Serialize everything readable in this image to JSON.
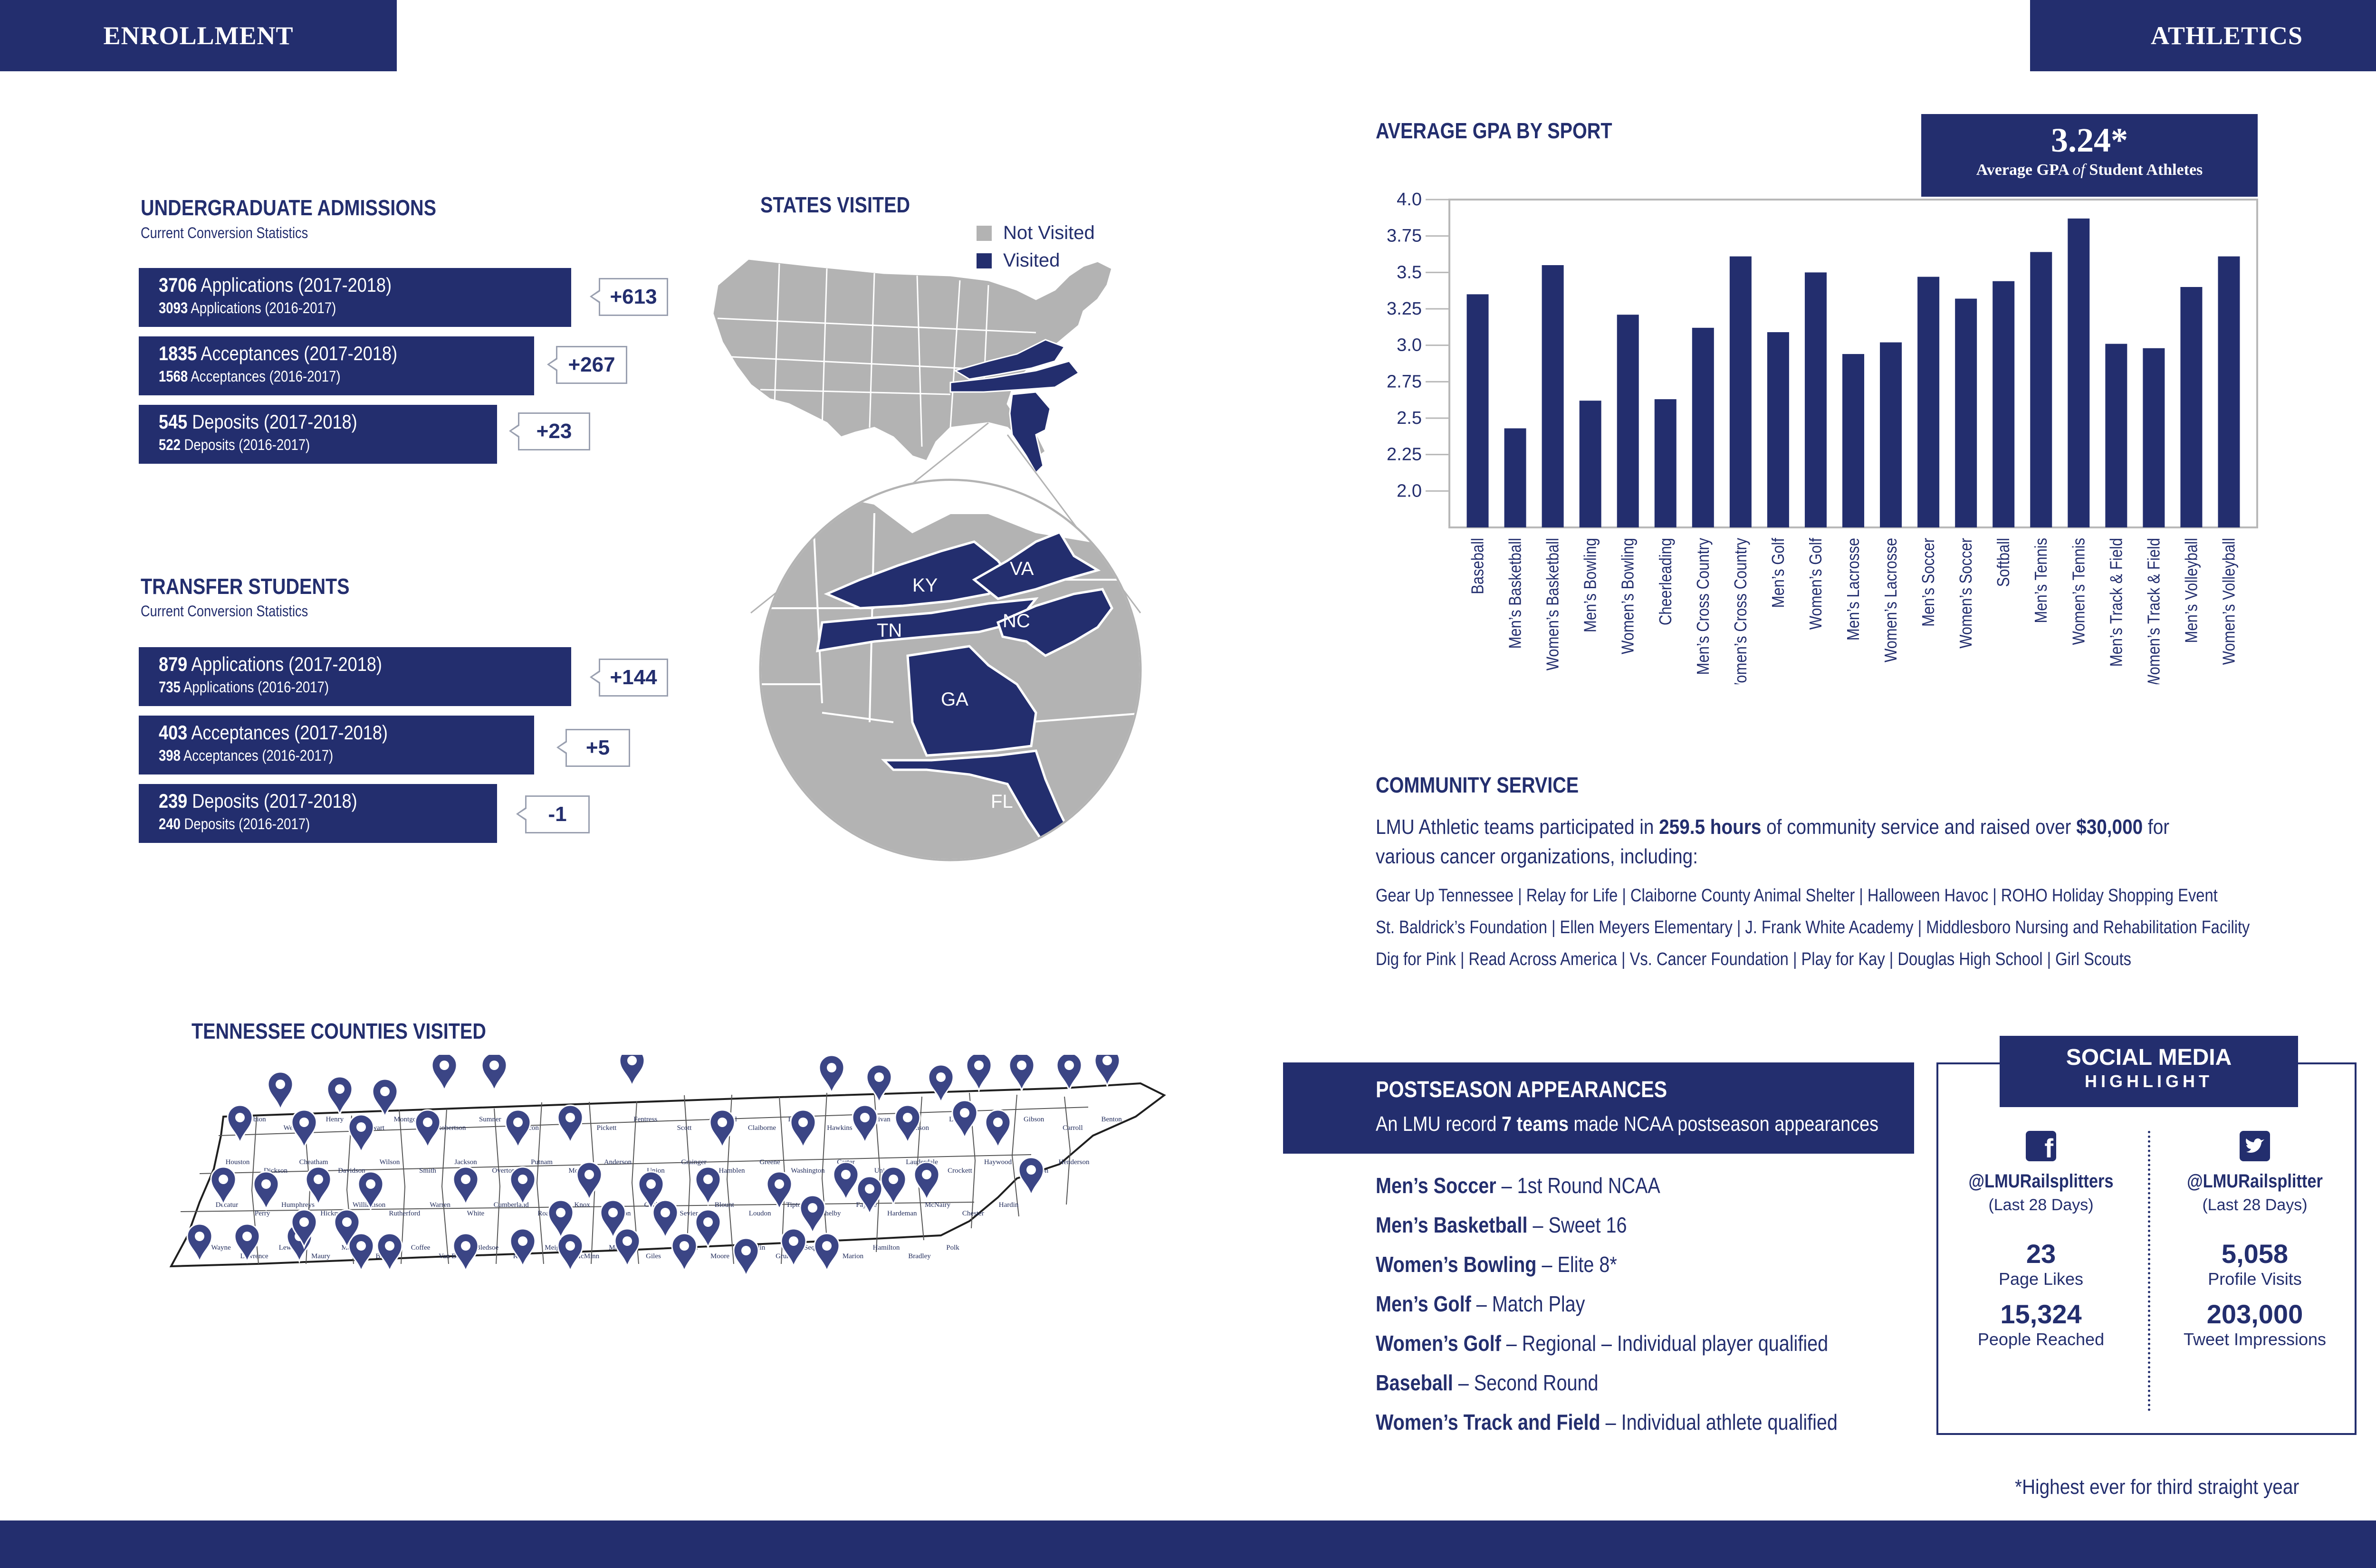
{
  "left_tab": "ENROLLMENT",
  "right_tab": "ATHLETICS",
  "undergrad": {
    "title": "UNDERGRADUATE ADMISSIONS",
    "subtitle": "Current Conversion Statistics",
    "rows": [
      {
        "value": "3706",
        "label": "Applications (2017-2018)",
        "prev_value": "3093",
        "prev_label": "Applications (2016-2017)",
        "change": "+613"
      },
      {
        "value": "1835",
        "label": "Acceptances (2017-2018)",
        "prev_value": "1568",
        "prev_label": "Acceptances (2016-2017)",
        "change": "+267"
      },
      {
        "value": "545",
        "label": "Deposits (2017-2018)",
        "prev_value": "522",
        "prev_label": "Deposits (2016-2017)",
        "change": "+23"
      }
    ]
  },
  "transfer": {
    "title": "TRANSFER STUDENTS",
    "subtitle": "Current Conversion Statistics",
    "rows": [
      {
        "value": "879",
        "label": "Applications (2017-2018)",
        "prev_value": "735",
        "prev_label": "Applications (2016-2017)",
        "change": "+144"
      },
      {
        "value": "403",
        "label": "Acceptances (2017-2018)",
        "prev_value": "398",
        "prev_label": "Acceptances (2016-2017)",
        "change": "+5"
      },
      {
        "value": "239",
        "label": "Deposits (2017-2018)",
        "prev_value": "240",
        "prev_label": "Deposits (2016-2017)",
        "change": "-1"
      }
    ]
  },
  "states": {
    "title": "STATES VISITED",
    "legend_not_visited": "Not Visited",
    "legend_visited": "Visited",
    "colors": {
      "visited": "#232e6e",
      "not_visited": "#b3b3b3"
    },
    "labels": {
      "ky": "KY",
      "va": "VA",
      "tn": "TN",
      "nc": "NC",
      "ga": "GA",
      "fl": "FL"
    }
  },
  "tn_counties": {
    "title": "TENNESSEE COUNTIES VISITED",
    "labels": [
      "Obion",
      "Weakley",
      "Henry",
      "Stewart",
      "Montgomery",
      "Robertson",
      "Sumner",
      "Macon",
      "Clay",
      "Pickett",
      "Fentress",
      "Scott",
      "Campbell",
      "Claiborne",
      "Hancock",
      "Hawkins",
      "Sullivan",
      "Johnson",
      "Lake",
      "Dyer",
      "Gibson",
      "Carroll",
      "Benton",
      "Houston",
      "Dickson",
      "Cheatham",
      "Davidson",
      "Wilson",
      "Smith",
      "Jackson",
      "Overton",
      "Putnam",
      "Morgan",
      "Anderson",
      "Union",
      "Grainger",
      "Hamblen",
      "Greene",
      "Washington",
      "Carter",
      "Unicoi",
      "Lauderdale",
      "Crockett",
      "Haywood",
      "Madison",
      "Henderson",
      "Decatur",
      "Perry",
      "Humphreys",
      "Hickman",
      "Williamson",
      "Rutherford",
      "Warren",
      "White",
      "Cumberland",
      "Roane",
      "Knox",
      "Jefferson",
      "Cocke",
      "Sevier",
      "Blount",
      "Loudon",
      "Tipton",
      "Shelby",
      "Fayette",
      "Hardeman",
      "McNairy",
      "Chester",
      "Hardin",
      "Wayne",
      "Lawrence",
      "Lewis",
      "Maury",
      "Marshall",
      "Bedford",
      "Coffee",
      "Van Buren",
      "Bledsoe",
      "Rhea",
      "Meigs",
      "McMinn",
      "Monroe",
      "Giles",
      "Lincoln",
      "Moore",
      "Franklin",
      "Grundy",
      "Sequatchie",
      "Marion",
      "Hamilton",
      "Bradley",
      "Polk"
    ]
  },
  "gpa_chart": {
    "title": "AVERAGE GPA BY SPORT",
    "highlight_value": "3.24*",
    "highlight_label_pre": "Average GPA",
    "highlight_label_of": "of",
    "highlight_label_post": "Student Athletes",
    "chart_data": {
      "type": "bar",
      "title": "AVERAGE GPA BY SPORT",
      "xlabel": "",
      "ylabel": "",
      "ylim": [
        1.75,
        4.0
      ],
      "yticks": [
        "4.0",
        "3.75",
        "3.5",
        "3.25",
        "3.0",
        "2.75",
        "2.5",
        "2.25",
        "2.0"
      ],
      "categories": [
        "Baseball",
        "Men’s Basketball",
        "Women’s Basketball",
        "Men’s Bowling",
        "Women’s Bowling",
        "Cheerleading",
        "Men’s Cross Country",
        "Women’s Cross Country",
        "Men’s Golf",
        "Women’s Golf",
        "Men’s Lacrosse",
        "Women’s Lacrosse",
        "Men’s Soccer",
        "Women’s Soccer",
        "Softball",
        "Men’s Tennis",
        "Women’s Tennis",
        "Men’s Track & Field",
        "Women’s Track & Field",
        "Men’s Volleyball",
        "Women’s Volleyball"
      ],
      "values": [
        3.35,
        2.43,
        3.55,
        2.62,
        3.21,
        2.63,
        3.12,
        3.61,
        3.09,
        3.5,
        2.94,
        3.02,
        3.47,
        3.32,
        3.44,
        3.64,
        3.87,
        3.01,
        2.98,
        3.4,
        3.61
      ],
      "color": "#232e6e"
    }
  },
  "community": {
    "title": "COMMUNITY SERVICE",
    "text_pre": "LMU Athletic teams participated in",
    "hours": "259.5 hours",
    "text_mid": "of community service and raised over",
    "amount": "$30,000",
    "text_post": "for various cancer organizations, including:",
    "org_lines": [
      "Gear Up Tennessee  |  Relay for Life  |  Claiborne County Animal Shelter  |  Halloween Havoc  |  ROHO Holiday Shopping Event",
      "St. Baldrick’s Foundation  |  Ellen Meyers Elementary  |  J. Frank White Academy  |  Middlesboro Nursing and Rehabilitation Facility",
      "Dig for Pink  |  Read Across America  |  Vs. Cancer Foundation  |  Play for Kay  |  Douglas High School  |  Girl Scouts"
    ]
  },
  "postseason": {
    "title": "POSTSEASON APPEARANCES",
    "sub_pre": "An LMU record",
    "sub_bold": "7 teams",
    "sub_post": "made NCAA postseason appearances",
    "items": [
      {
        "team": "Men’s Soccer",
        "result": " – 1st Round NCAA"
      },
      {
        "team": "Men’s Basketball",
        "result": " – Sweet 16"
      },
      {
        "team": "Women’s Bowling",
        "result": " – Elite 8*"
      },
      {
        "team": "Men’s Golf",
        "result": " – Match Play"
      },
      {
        "team": "Women’s Golf",
        "result": " – Regional – Individual player qualified"
      },
      {
        "team": "Baseball",
        "result": " – Second Round"
      },
      {
        "team": "Women’s Track and Field",
        "result": " – Individual athlete qualified"
      }
    ]
  },
  "social": {
    "title": "SOCIAL MEDIA",
    "subtitle": "HIGHLIGHT",
    "facebook": {
      "icon": "facebook-icon",
      "handle": "@LMURailsplitters",
      "period": "(Last 28 Days)",
      "stat1_value": "23",
      "stat1_label": "Page Likes",
      "stat2_value": "15,324",
      "stat2_label": "People Reached"
    },
    "twitter": {
      "icon": "twitter-icon",
      "handle": "@LMURailsplitter",
      "period": "(Last 28 Days)",
      "stat1_value": "5,058",
      "stat1_label": "Profile Visits",
      "stat2_value": "203,000",
      "stat2_label": "Tweet Impressions"
    }
  },
  "footnote": "*Highest ever for third straight year"
}
